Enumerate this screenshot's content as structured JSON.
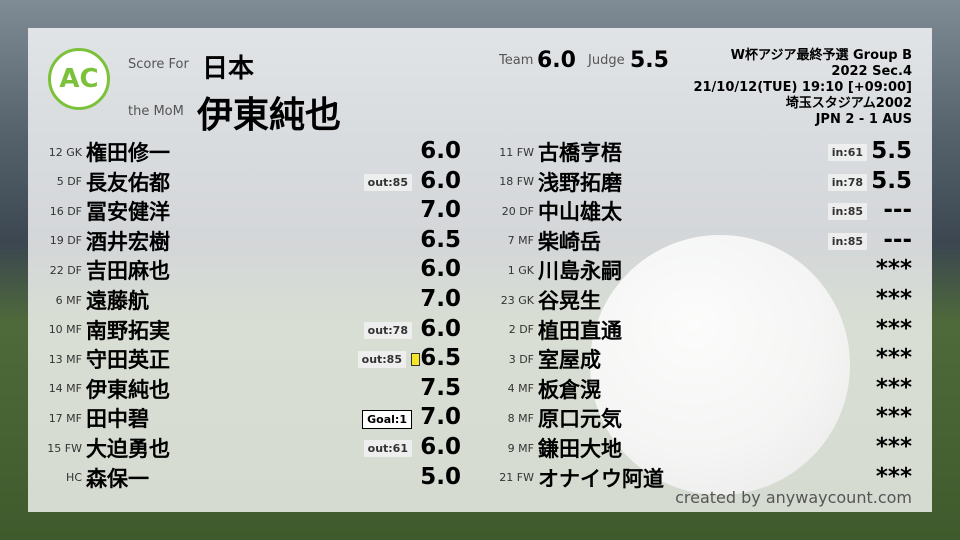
{
  "header": {
    "logo_text": "AC",
    "logo_ring": "ANYWAY COUNT",
    "score_for_label": "Score For",
    "team": "日本",
    "mom_label": "the MoM",
    "mom": "伊東純也",
    "team_label": "Team",
    "team_score": "6.0",
    "judge_label": "Judge",
    "judge_score": "5.5"
  },
  "match": {
    "competition": "W杯アジア最終予選 Group B",
    "section": "2022 Sec.4",
    "datetime": "21/10/12(TUE) 19:10 [+09:00]",
    "venue": "埼玉スタジアム2002",
    "result": "JPN 2 - 1 AUS"
  },
  "left": [
    {
      "pos": "12 GK",
      "name": "権田修一",
      "badge": "",
      "score": "6.0"
    },
    {
      "pos": "5 DF",
      "name": "長友佑都",
      "badge": "out:85",
      "score": "6.0"
    },
    {
      "pos": "16 DF",
      "name": "冨安健洋",
      "badge": "",
      "score": "7.0"
    },
    {
      "pos": "19 DF",
      "name": "酒井宏樹",
      "badge": "",
      "score": "6.5"
    },
    {
      "pos": "22 DF",
      "name": "吉田麻也",
      "badge": "",
      "score": "6.0"
    },
    {
      "pos": "6 MF",
      "name": "遠藤航",
      "badge": "",
      "score": "7.0"
    },
    {
      "pos": "10 MF",
      "name": "南野拓実",
      "badge": "out:78",
      "score": "6.0"
    },
    {
      "pos": "13 MF",
      "name": "守田英正",
      "badge": "out:85",
      "card": "yellow",
      "score": "6.5"
    },
    {
      "pos": "14 MF",
      "name": "伊東純也",
      "badge": "",
      "score": "7.5"
    },
    {
      "pos": "17 MF",
      "name": "田中碧",
      "badge": "Goal:1",
      "goal": true,
      "score": "7.0"
    },
    {
      "pos": "15 FW",
      "name": "大迫勇也",
      "badge": "out:61",
      "score": "6.0"
    },
    {
      "pos": "HC",
      "name": "森保一",
      "badge": "",
      "score": "5.0"
    }
  ],
  "right": [
    {
      "pos": "11 FW",
      "name": "古橋亨梧",
      "badge": "in:61",
      "score": "5.5"
    },
    {
      "pos": "18 FW",
      "name": "浅野拓磨",
      "badge": "in:78",
      "score": "5.5"
    },
    {
      "pos": "20 DF",
      "name": "中山雄太",
      "badge": "in:85",
      "score": "---"
    },
    {
      "pos": "7 MF",
      "name": "柴崎岳",
      "badge": "in:85",
      "score": "---"
    },
    {
      "pos": "1 GK",
      "name": "川島永嗣",
      "badge": "",
      "score": "***"
    },
    {
      "pos": "23 GK",
      "name": "谷晃生",
      "badge": "",
      "score": "***"
    },
    {
      "pos": "2 DF",
      "name": "植田直通",
      "badge": "",
      "score": "***"
    },
    {
      "pos": "3 DF",
      "name": "室屋成",
      "badge": "",
      "score": "***"
    },
    {
      "pos": "4 MF",
      "name": "板倉滉",
      "badge": "",
      "score": "***"
    },
    {
      "pos": "8 MF",
      "name": "原口元気",
      "badge": "",
      "score": "***"
    },
    {
      "pos": "9 MF",
      "name": "鎌田大地",
      "badge": "",
      "score": "***"
    },
    {
      "pos": "21 FW",
      "name": "オナイウ阿道",
      "badge": "",
      "score": "***"
    }
  ],
  "credit": "created by anywaycount.com",
  "colors": {
    "logo": "#7cc13a",
    "yellow_card": "#f5e52a"
  }
}
